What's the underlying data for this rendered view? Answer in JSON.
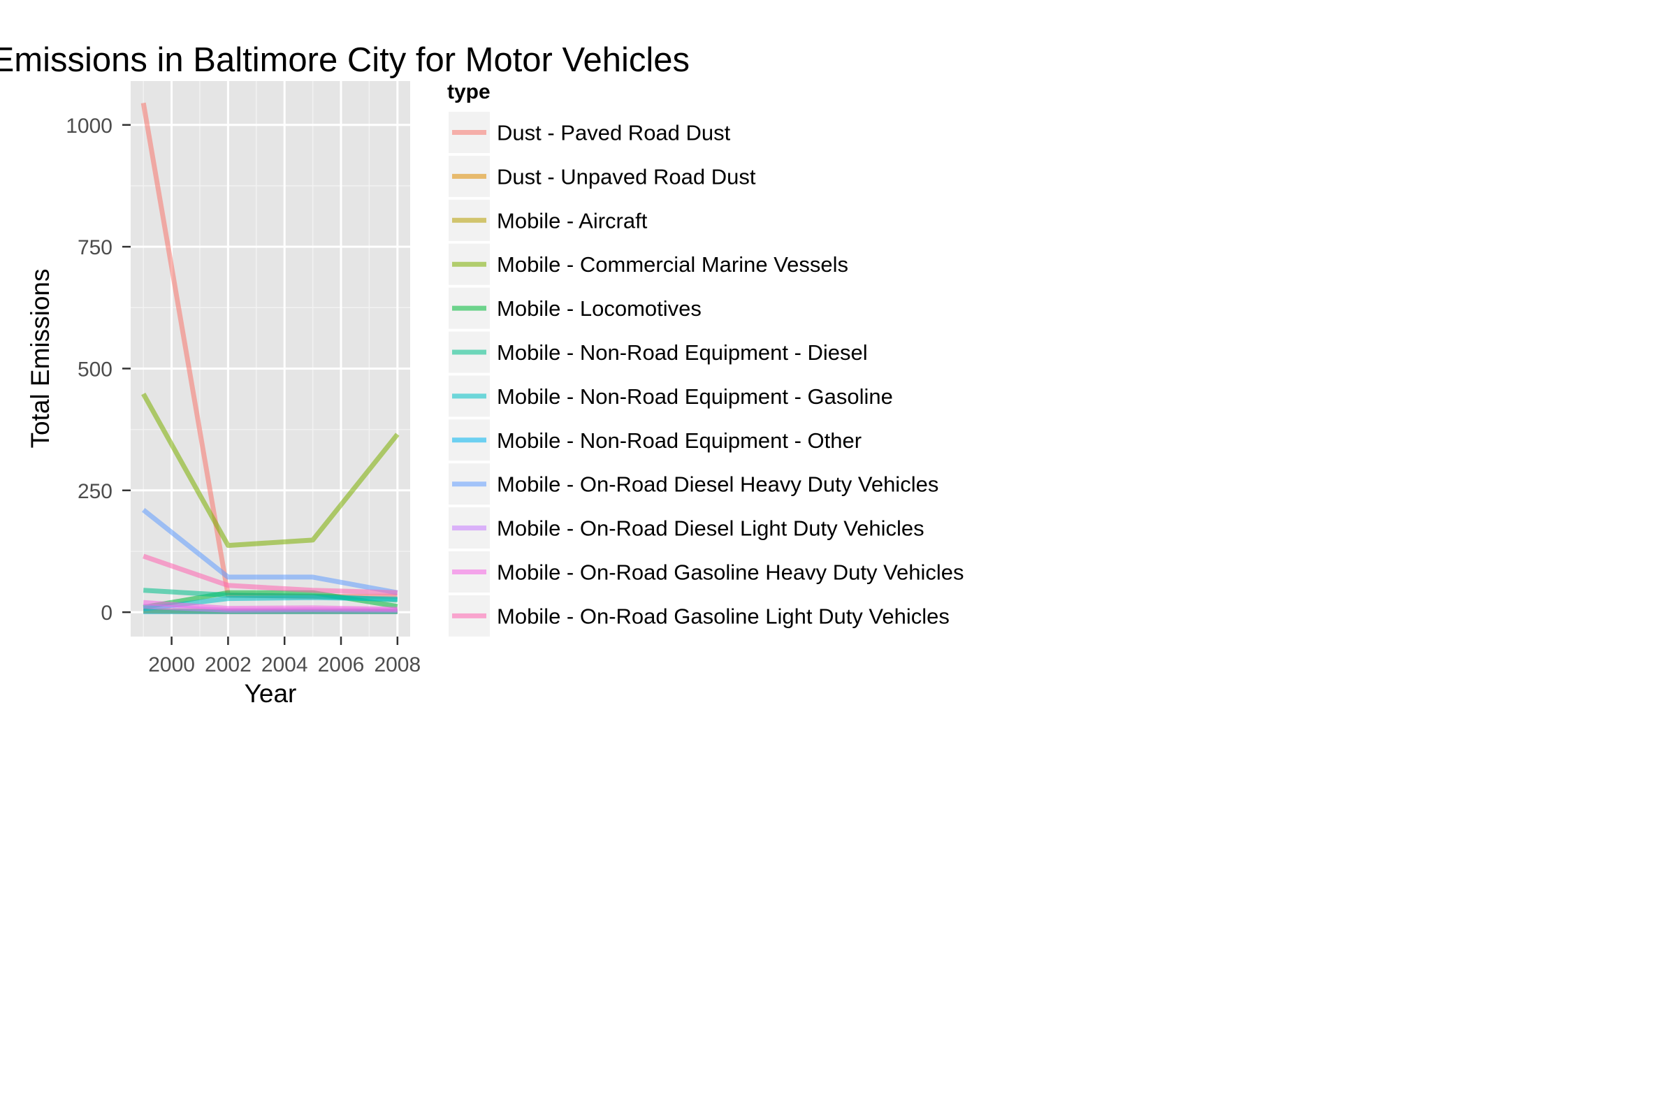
{
  "chart_data": {
    "type": "line",
    "title": "Total Emissions in Baltimore City for Motor Vehicles",
    "xlabel": "Year",
    "ylabel": "Total Emissions",
    "xlim": [
      1998.55,
      2008.45
    ],
    "ylim": [
      -50,
      1090
    ],
    "x_ticks": [
      2000,
      2002,
      2004,
      2006,
      2008
    ],
    "y_ticks": [
      0,
      250,
      500,
      750,
      1000
    ],
    "x_tick_labels": [
      "2000",
      "2002",
      "2004",
      "2006",
      "2008"
    ],
    "y_tick_labels": [
      "0",
      "250",
      "500",
      "750",
      "1000"
    ],
    "grid": true,
    "legend_title": "type",
    "legend_position": "right",
    "x": [
      1999,
      2002,
      2005,
      2008
    ],
    "series": [
      {
        "name": "Dust - Paved Road Dust",
        "color": "#f8766d",
        "values": [
          1045,
          35,
          32,
          33
        ]
      },
      {
        "name": "Dust - Unpaved Road Dust",
        "color": "#de8c00",
        "values": [
          2,
          1,
          1,
          1
        ]
      },
      {
        "name": "Mobile - Aircraft",
        "color": "#b79f00",
        "values": [
          3,
          2,
          2,
          2
        ]
      },
      {
        "name": "Mobile - Commercial Marine Vessels",
        "color": "#7cae00",
        "values": [
          448,
          137,
          148,
          365
        ]
      },
      {
        "name": "Mobile - Locomotives",
        "color": "#00ba38",
        "values": [
          10,
          40,
          40,
          12
        ]
      },
      {
        "name": "Mobile - Non-Road Equipment - Diesel",
        "color": "#00c08b",
        "values": [
          45,
          35,
          33,
          25
        ]
      },
      {
        "name": "Mobile - Non-Road Equipment - Gasoline",
        "color": "#00bfc4",
        "values": [
          7,
          28,
          30,
          27
        ]
      },
      {
        "name": "Mobile - Non-Road Equipment - Other",
        "color": "#00b4f0",
        "values": [
          1,
          1,
          1,
          1
        ]
      },
      {
        "name": "Mobile - On-Road Diesel Heavy Duty Vehicles",
        "color": "#619cff",
        "values": [
          210,
          72,
          72,
          40
        ]
      },
      {
        "name": "Mobile - On-Road Diesel Light Duty Vehicles",
        "color": "#c77cff",
        "values": [
          12,
          4,
          5,
          4
        ]
      },
      {
        "name": "Mobile - On-Road Gasoline Heavy Duty Vehicles",
        "color": "#f564e3",
        "values": [
          20,
          8,
          9,
          6
        ]
      },
      {
        "name": "Mobile - On-Road Gasoline Light Duty Vehicles",
        "color": "#ff64b0",
        "values": [
          115,
          55,
          45,
          40
        ]
      }
    ]
  }
}
